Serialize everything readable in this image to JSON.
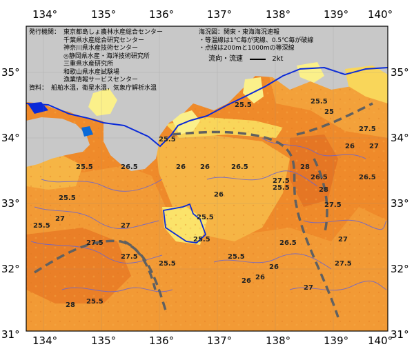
{
  "map": {
    "lon_ticks": [
      "134°",
      "135°",
      "136°",
      "137°",
      "138°",
      "139°",
      "140°"
    ],
    "lat_ticks": [
      "35°",
      "34°",
      "33°",
      "32°",
      "31°"
    ],
    "info_left": {
      "issuer_label": "発行機関：",
      "issuers": [
        "東京都島しょ農林水産総合センター",
        "千葉県水産総合研究センター",
        "神奈川県水産技術センター",
        "◎静岡県水産・海洋技術研究所",
        "三重県水産研究所",
        "和歌山県水産試験場",
        "漁業情報サービスセンター"
      ],
      "source_label": "資料：",
      "source_text": "船舶水温，衛星水温，気象庁解析水温"
    },
    "info_right": {
      "lines": [
        "海況図：関東・東海海況速報",
        "・等温線は1℃毎が実線、0.5℃毎が破線",
        "・点線は200mと1000mの等深線"
      ],
      "legend_label": "流向・流速",
      "legend_value": "2kt"
    },
    "contour_labels": [
      "25.5",
      "25.5",
      "25.5",
      "25.5",
      "25.5",
      "25.5",
      "25.5",
      "25.5",
      "25.5",
      "25.5",
      "25.5",
      "25.5",
      "26",
      "26",
      "26",
      "26",
      "26",
      "26",
      "26",
      "26.5",
      "26.5",
      "26.5",
      "26.5",
      "26.5",
      "27",
      "27",
      "27",
      "27",
      "27",
      "27.5",
      "27.5",
      "27.5",
      "27.5",
      "27.5",
      "27.5",
      "28",
      "28",
      "28",
      "25"
    ],
    "colors": {
      "land": "#c8c8c8",
      "sea_warm": "#ef8a2a",
      "sea_mid": "#f4a73a",
      "sea_light": "#f9d65a",
      "sea_pale": "#fbf08a",
      "coast_blue": "#0a2ad8",
      "current": "#606060",
      "isotherm": "#5a58c8"
    }
  }
}
